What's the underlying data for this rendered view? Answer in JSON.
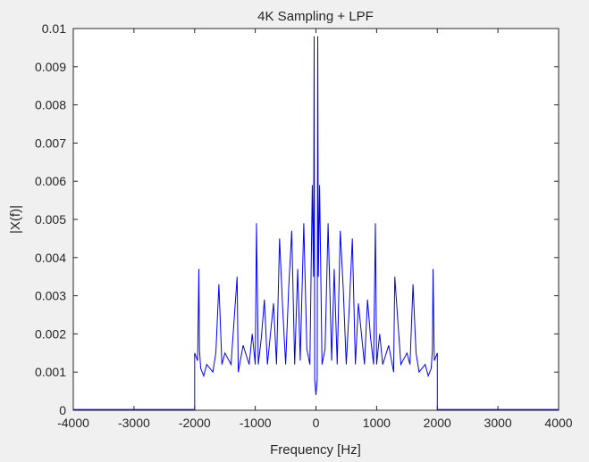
{
  "window": {
    "background": "#f0f0f0"
  },
  "chart_data": {
    "type": "line",
    "title": "4K Sampling + LPF",
    "xlabel": "Frequency [Hz]",
    "ylabel": "|X(f)|",
    "xlim": [
      -4000,
      4000
    ],
    "ylim": [
      0,
      0.01
    ],
    "x_ticks": [
      "-4000",
      "-3000",
      "-2000",
      "-1000",
      "0",
      "1000",
      "2000",
      "3000",
      "4000"
    ],
    "y_ticks": [
      "0",
      "0.001",
      "0.002",
      "0.003",
      "0.004",
      "0.005",
      "0.006",
      "0.007",
      "0.008",
      "0.009",
      "0.01"
    ],
    "grid": false,
    "line_color": "#0000ff",
    "series": [
      {
        "x": [
          -4000,
          -2000,
          -2000,
          -1950,
          -1930,
          -1920,
          -1900,
          -1850,
          -1800,
          -1700,
          -1650,
          -1600,
          -1550,
          -1500,
          -1400,
          -1300,
          -1280,
          -1200,
          -1100,
          -1050,
          -1000,
          -980,
          -950,
          -900,
          -850,
          -800,
          -700,
          -650,
          -600,
          -550,
          -500,
          -450,
          -400,
          -350,
          -300,
          -260,
          -200,
          -150,
          -100,
          -60,
          -40,
          -30,
          -20,
          0,
          20,
          30,
          40,
          60,
          100,
          150,
          200,
          260,
          300,
          350,
          400,
          450,
          500,
          550,
          600,
          650,
          700,
          800,
          850,
          900,
          950,
          980,
          1000,
          1050,
          1100,
          1200,
          1280,
          1300,
          1400,
          1500,
          1550,
          1600,
          1650,
          1700,
          1800,
          1850,
          1900,
          1920,
          1930,
          1950,
          2000,
          2000,
          4000
        ],
        "y": [
          2e-05,
          2e-05,
          0.0015,
          0.0013,
          0.0037,
          0.0016,
          0.0011,
          0.0009,
          0.0012,
          0.001,
          0.0015,
          0.0033,
          0.0012,
          0.0015,
          0.0012,
          0.0035,
          0.001,
          0.0017,
          0.0012,
          0.002,
          0.0012,
          0.0049,
          0.0012,
          0.0019,
          0.0029,
          0.0012,
          0.0028,
          0.0012,
          0.0045,
          0.0027,
          0.0012,
          0.0032,
          0.0047,
          0.0012,
          0.0037,
          0.0013,
          0.0049,
          0.0016,
          0.0012,
          0.0059,
          0.0035,
          0.0098,
          0.0008,
          0.0004,
          0.0008,
          0.0098,
          0.0035,
          0.0059,
          0.0012,
          0.0016,
          0.0049,
          0.0013,
          0.0037,
          0.0012,
          0.0047,
          0.0032,
          0.0012,
          0.0027,
          0.0045,
          0.0012,
          0.0028,
          0.0012,
          0.0029,
          0.0019,
          0.0012,
          0.0049,
          0.0012,
          0.002,
          0.0012,
          0.0017,
          0.001,
          0.0035,
          0.0012,
          0.0015,
          0.0012,
          0.0033,
          0.0015,
          0.001,
          0.0012,
          0.0009,
          0.0011,
          0.0016,
          0.0037,
          0.0013,
          0.0015,
          2e-05,
          2e-05
        ]
      }
    ]
  }
}
